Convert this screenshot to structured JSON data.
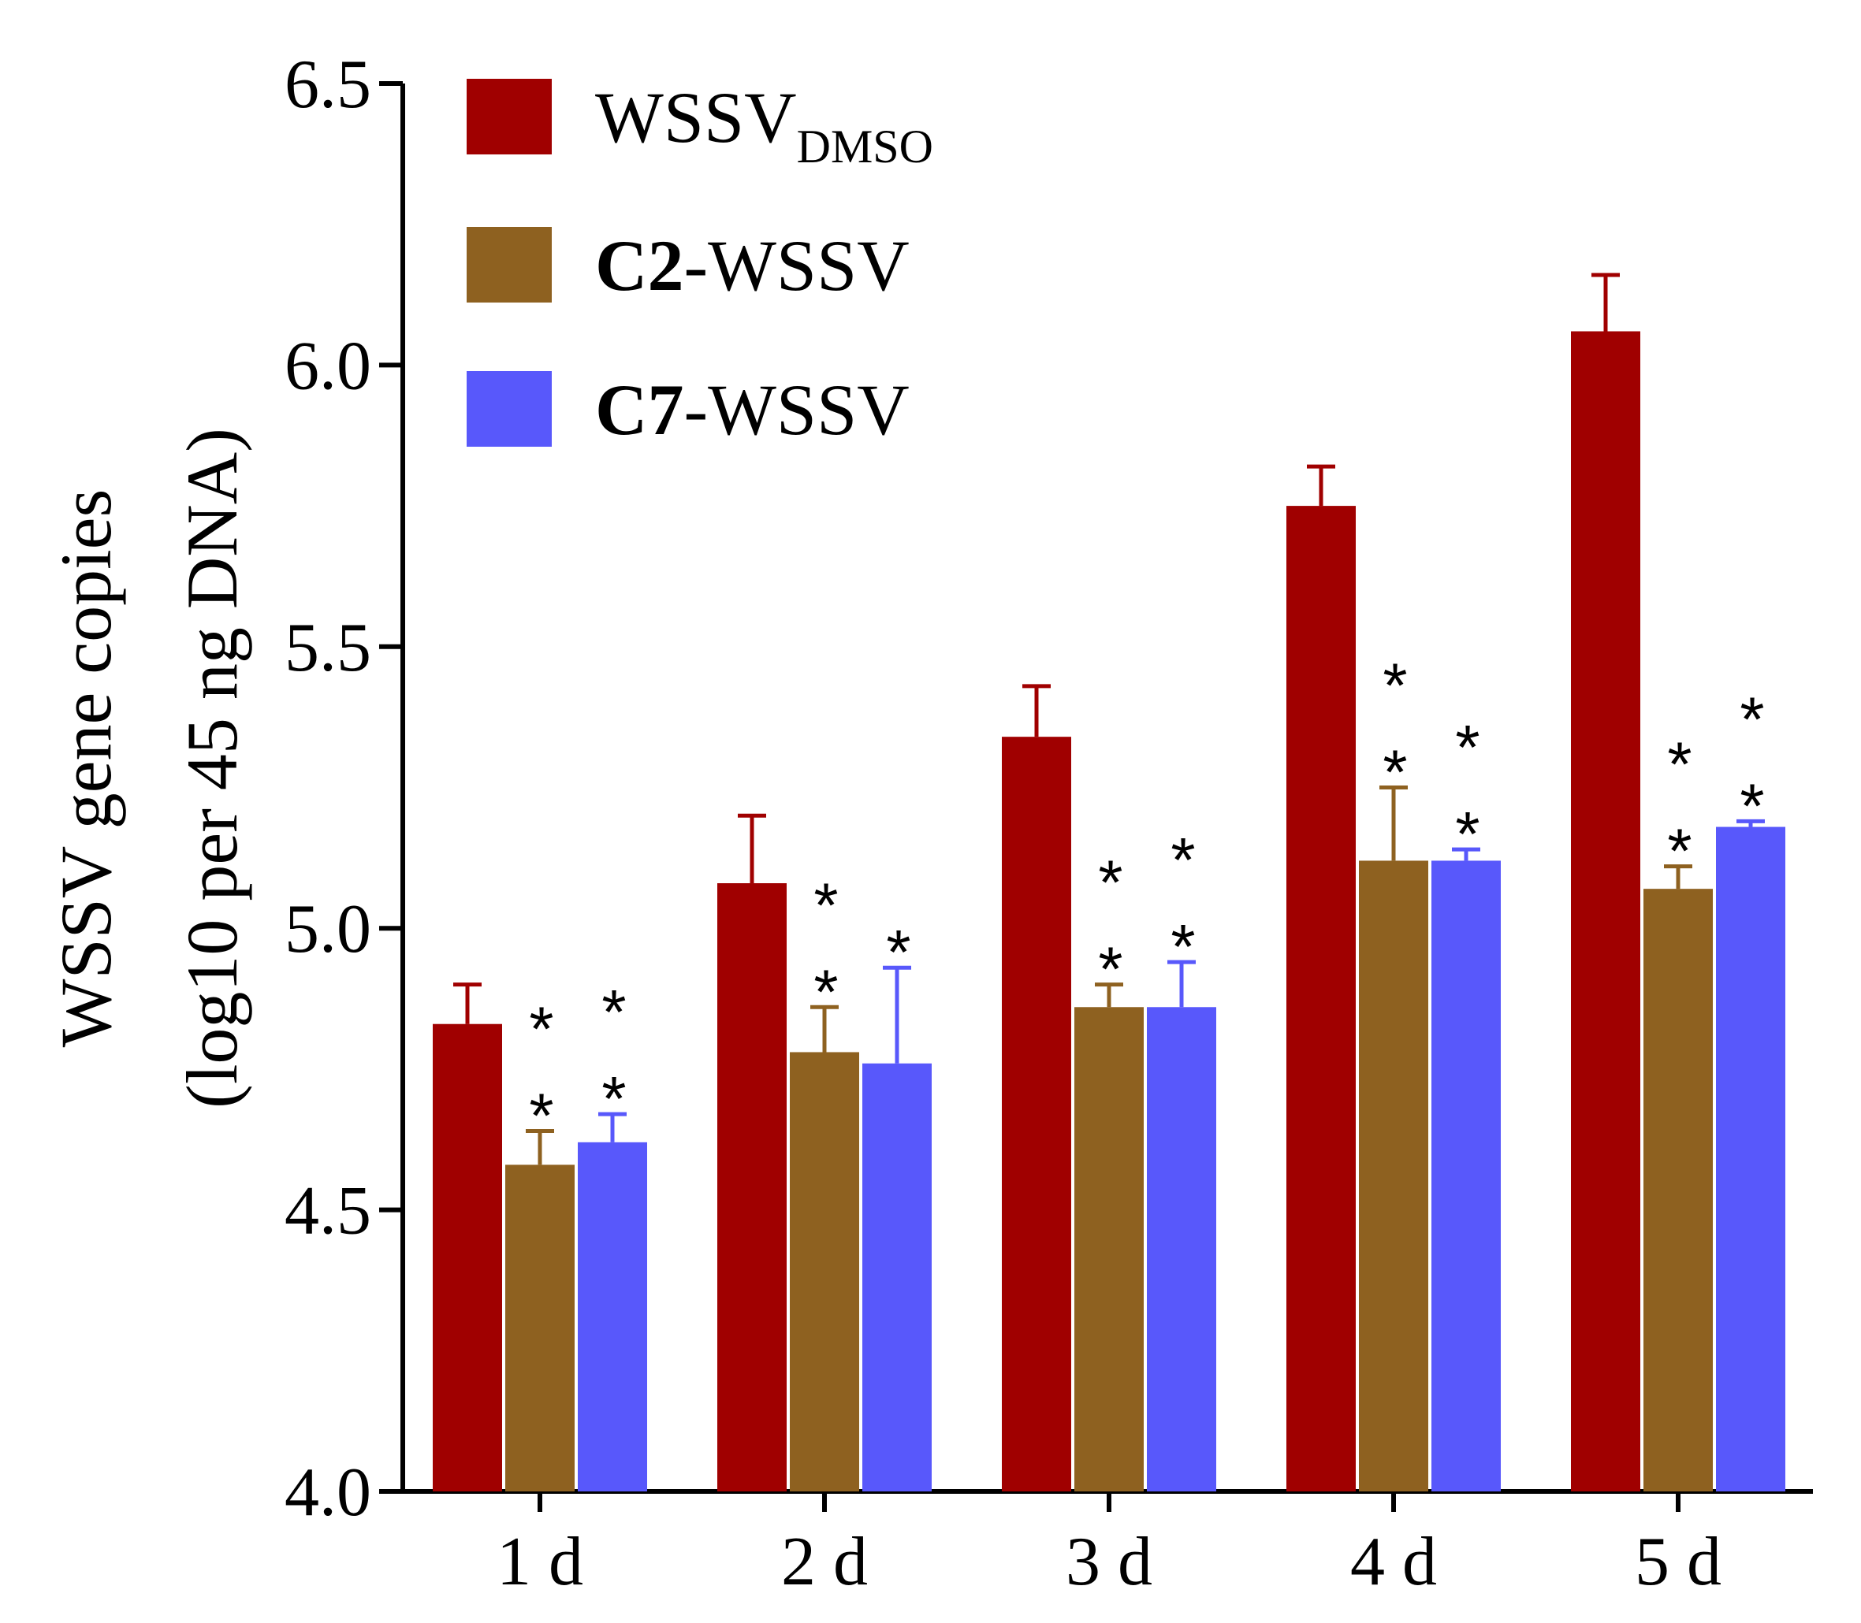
{
  "chart_data": {
    "type": "bar",
    "title": "",
    "xlabel": "",
    "ylabel_lines": [
      "WSSV gene copies",
      "(log10 per 45 ng DNA)"
    ],
    "ylim": [
      4.0,
      6.5
    ],
    "yticks": [
      "4.0",
      "4.5",
      "5.0",
      "5.5",
      "6.0",
      "6.5"
    ],
    "ytick_values": [
      4.0,
      4.5,
      5.0,
      5.5,
      6.0,
      6.5
    ],
    "categories": [
      "1 d",
      "2 d",
      "3 d",
      "4 d",
      "5 d"
    ],
    "series": [
      {
        "name": "WSSV",
        "name_sub": "DMSO",
        "color": "#a00000",
        "values": [
          4.83,
          5.08,
          5.34,
          5.75,
          6.06
        ],
        "errors": [
          0.07,
          0.12,
          0.09,
          0.07,
          0.1
        ],
        "significance": [
          "",
          "",
          "",
          "",
          ""
        ]
      },
      {
        "name": "C2",
        "name_suffix": "-WSSV",
        "color": "#8e6120",
        "values": [
          4.58,
          4.78,
          4.86,
          5.12,
          5.07
        ],
        "errors": [
          0.06,
          0.08,
          0.04,
          0.13,
          0.04
        ],
        "significance": [
          "**",
          "**",
          "**",
          "**",
          "**"
        ]
      },
      {
        "name": "C7",
        "name_suffix": "-WSSV",
        "color": "#5858fb",
        "values": [
          4.62,
          4.76,
          4.86,
          5.12,
          5.18
        ],
        "errors": [
          0.05,
          0.17,
          0.08,
          0.02,
          0.01
        ],
        "significance": [
          "**",
          "*",
          "**",
          "**",
          "**"
        ]
      }
    ],
    "legend_position": "top-left"
  }
}
